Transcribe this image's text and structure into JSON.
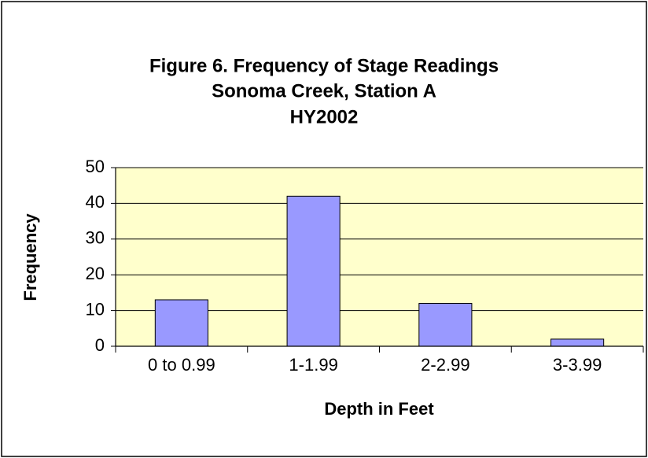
{
  "chart_data": {
    "type": "bar",
    "title": [
      "Figure 6.  Frequency of Stage Readings",
      "Sonoma Creek, Station A",
      "HY2002"
    ],
    "x_label": "Depth in Feet",
    "y_label": "Frequency",
    "categories": [
      "0 to 0.99",
      "1-1.99",
      "2-2.99",
      "3-3.99"
    ],
    "values": [
      13,
      42,
      12,
      2
    ],
    "color": "#9999ff",
    "ylim": [
      0,
      50
    ],
    "yticks": [
      0,
      10,
      20,
      30,
      40,
      50
    ],
    "grid": true
  }
}
